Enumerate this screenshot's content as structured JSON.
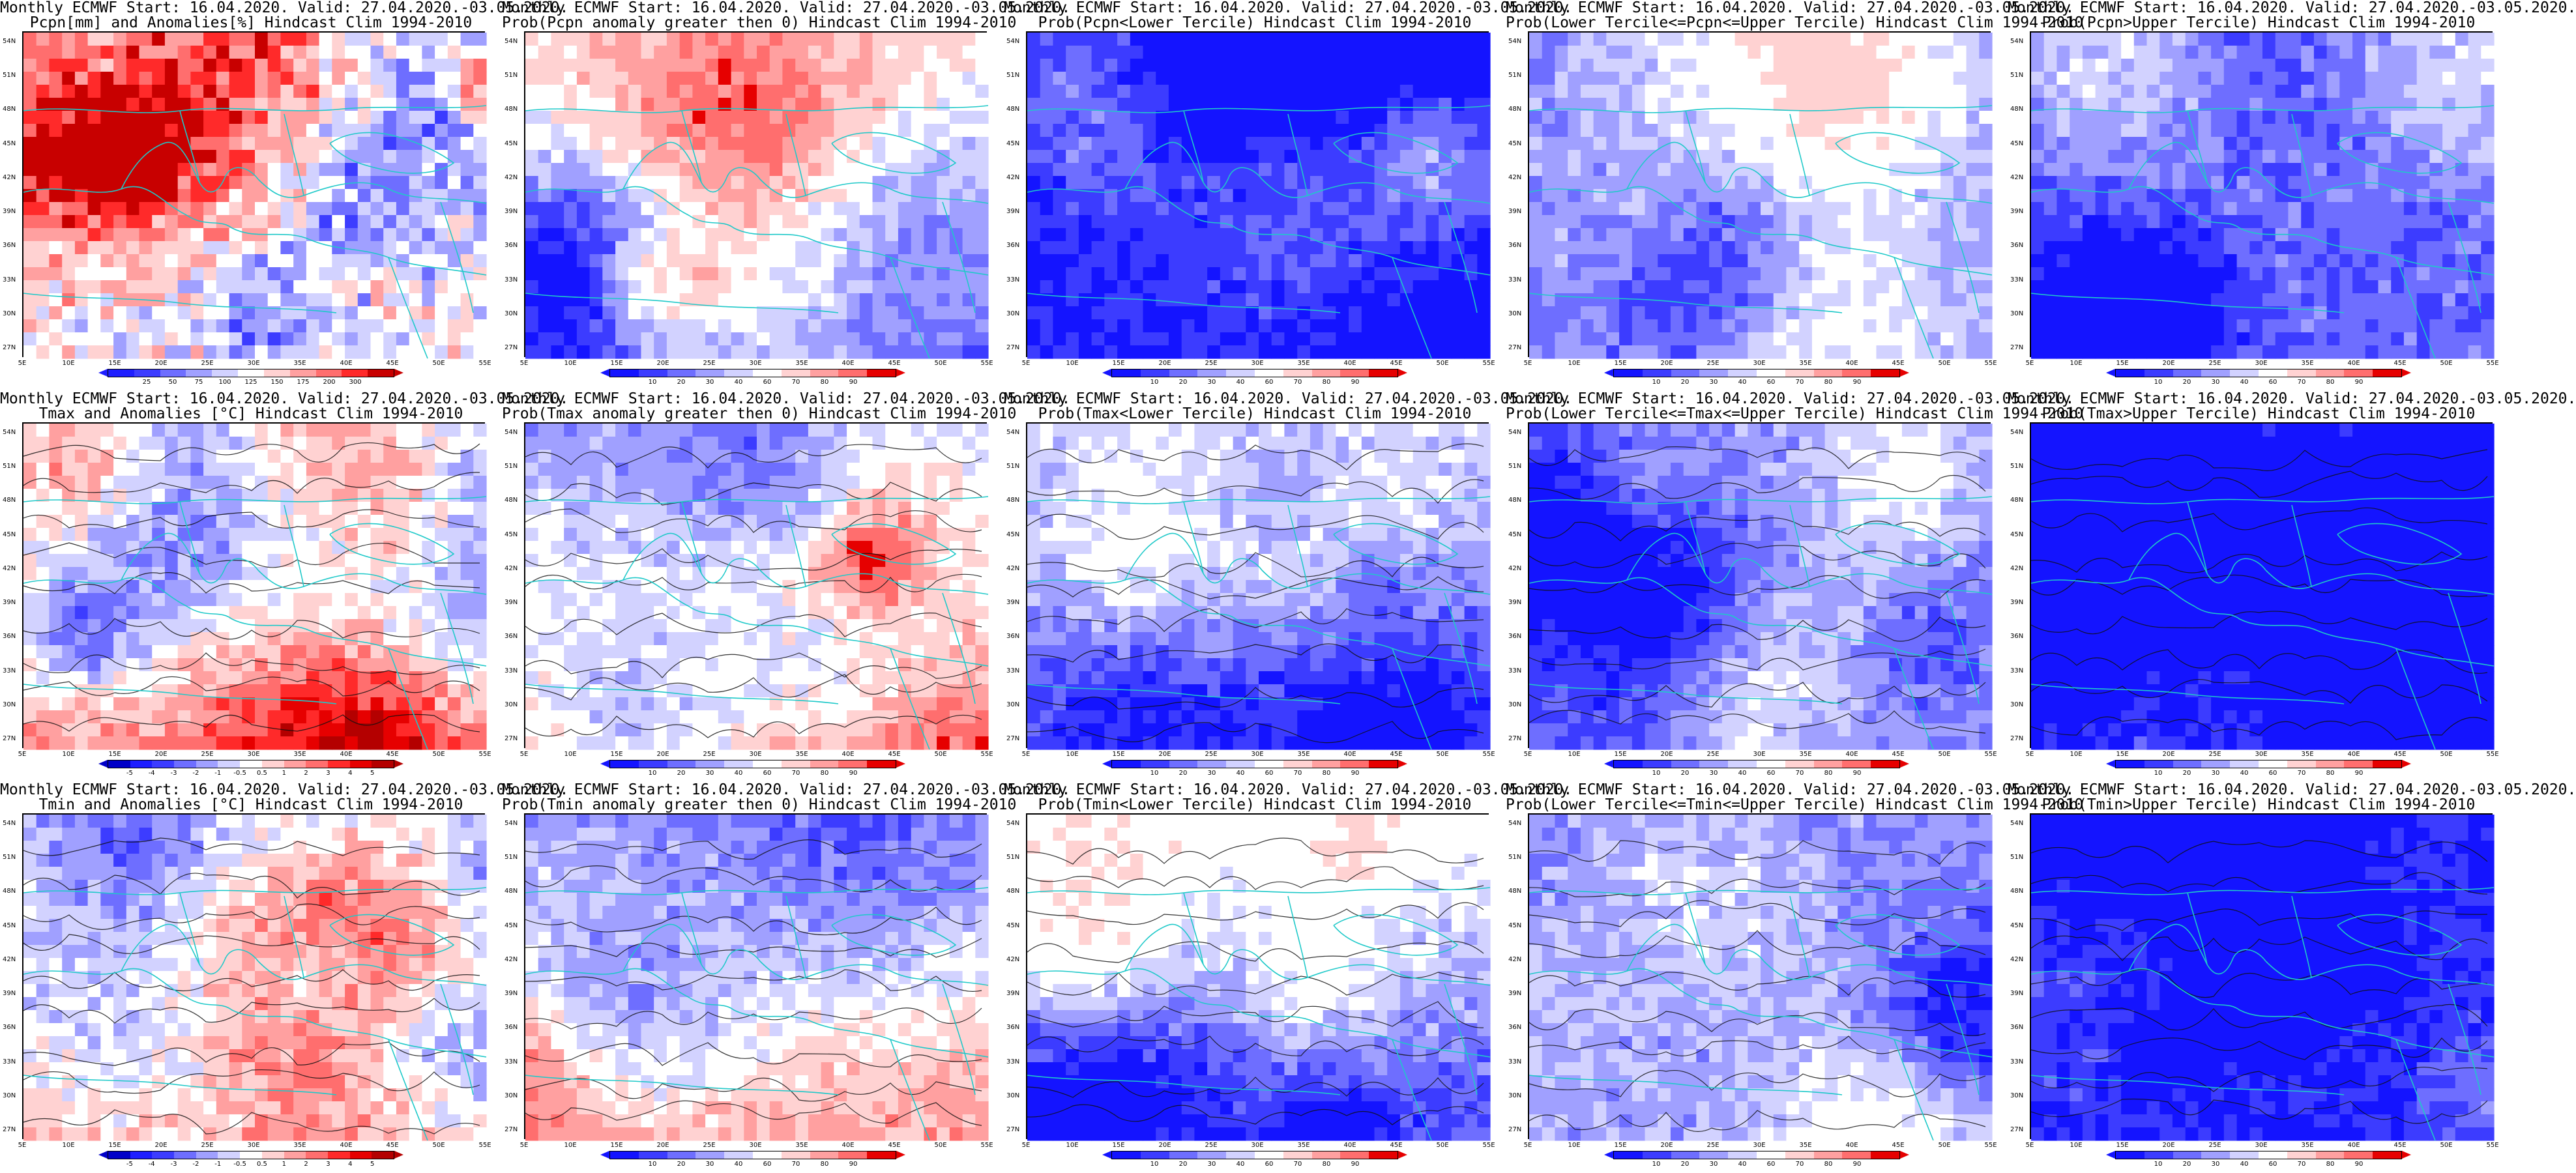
{
  "panels": [
    {
      "title1": "Monthly ECMWF Start: 16.04.2020. Valid: 27.04.2020.-03.05.2020.",
      "title2": "Pcpn[mm] and Anomalies[%] Hindcast Clim 1994-2010",
      "map": "precipitation-anomaly-map",
      "scale": "pcpn_anom"
    },
    {
      "title1": "Monthly ECMWF Start: 16.04.2020. Valid: 27.04.2020.-03.05.2020.",
      "title2": "Prob(Pcpn anomaly greater then 0) Hindcast Clim 1994-2010",
      "map": "precipitation-positive-anomaly-probability-map",
      "scale": "prob"
    },
    {
      "title1": "Monthly ECMWF Start: 16.04.2020. Valid: 27.04.2020.-03.05.2020.",
      "title2": "Prob(Pcpn<Lower Tercile) Hindcast Clim 1994-2010",
      "map": "precipitation-lower-tercile-probability-map",
      "scale": "prob"
    },
    {
      "title1": "Monthly ECMWF Start: 16.04.2020. Valid: 27.04.2020.-03.05.2020.",
      "title2": "Prob(Lower Tercile<=Pcpn<=Upper Tercile) Hindcast Clim 1994-2010",
      "map": "precipitation-middle-tercile-probability-map",
      "scale": "prob"
    },
    {
      "title1": "Monthly ECMWF Start: 16.04.2020. Valid: 27.04.2020.-03.05.2020.",
      "title2": "Prob(Pcpn>Upper Tercile) Hindcast Clim 1994-2010",
      "map": "precipitation-upper-tercile-probability-map",
      "scale": "prob"
    },
    {
      "title1": "Monthly ECMWF Start: 16.04.2020. Valid: 27.04.2020.-03.05.2020.",
      "title2": "Tmax and Anomalies [°C] Hindcast Clim 1994-2010",
      "map": "tmax-anomaly-map",
      "scale": "temp_anom"
    },
    {
      "title1": "Monthly ECMWF Start: 16.04.2020. Valid: 27.04.2020.-03.05.2020.",
      "title2": "Prob(Tmax anomaly greater then 0) Hindcast Clim 1994-2010",
      "map": "tmax-positive-anomaly-probability-map",
      "scale": "prob"
    },
    {
      "title1": "Monthly ECMWF Start: 16.04.2020. Valid: 27.04.2020.-03.05.2020.",
      "title2": "Prob(Tmax<Lower Tercile) Hindcast Clim 1994-2010",
      "map": "tmax-lower-tercile-probability-map",
      "scale": "prob"
    },
    {
      "title1": "Monthly ECMWF Start: 16.04.2020. Valid: 27.04.2020.-03.05.2020.",
      "title2": "Prob(Lower Tercile<=Tmax<=Upper Tercile) Hindcast Clim 1994-2010",
      "map": "tmax-middle-tercile-probability-map",
      "scale": "prob"
    },
    {
      "title1": "Monthly ECMWF Start: 16.04.2020. Valid: 27.04.2020.-03.05.2020.",
      "title2": "Prob(Tmax>Upper Tercile) Hindcast Clim 1994-2010",
      "map": "tmax-upper-tercile-probability-map",
      "scale": "prob"
    },
    {
      "title1": "Monthly ECMWF Start: 16.04.2020. Valid: 27.04.2020.-03.05.2020.",
      "title2": "Tmin and Anomalies [°C] Hindcast Clim 1994-2010",
      "map": "tmin-anomaly-map",
      "scale": "temp_anom"
    },
    {
      "title1": "Monthly ECMWF Start: 16.04.2020. Valid: 27.04.2020.-03.05.2020.",
      "title2": "Prob(Tmin anomaly greater then 0) Hindcast Clim 1994-2010",
      "map": "tmin-positive-anomaly-probability-map",
      "scale": "prob"
    },
    {
      "title1": "Monthly ECMWF Start: 16.04.2020. Valid: 27.04.2020.-03.05.2020.",
      "title2": "Prob(Tmin<Lower Tercile) Hindcast Clim 1994-2010",
      "map": "tmin-lower-tercile-probability-map",
      "scale": "prob"
    },
    {
      "title1": "Monthly ECMWF Start: 16.04.2020. Valid: 27.04.2020.-03.05.2020.",
      "title2": "Prob(Lower Tercile<=Tmin<=Upper Tercile) Hindcast Clim 1994-2010",
      "map": "tmin-middle-tercile-probability-map",
      "scale": "prob"
    },
    {
      "title1": "Monthly ECMWF Start: 16.04.2020. Valid: 27.04.2020.-03.05.2020.",
      "title2": "Prob(Tmin>Upper Tercile) Hindcast Clim 1994-2010",
      "map": "tmin-upper-tercile-probability-map",
      "scale": "prob"
    }
  ],
  "lat_labels": [
    "54N",
    "51N",
    "48N",
    "45N",
    "42N",
    "39N",
    "36N",
    "33N",
    "30N",
    "27N"
  ],
  "lon_labels": [
    "5E",
    "10E",
    "15E",
    "20E",
    "25E",
    "30E",
    "35E",
    "40E",
    "45E",
    "50E",
    "55E"
  ],
  "scales": {
    "pcpn_anom": {
      "ticks": [
        "25",
        "50",
        "75",
        "100",
        "125",
        "150",
        "175",
        "200",
        "300"
      ],
      "colors": [
        "#1e1eff",
        "#3c3cff",
        "#6e6eff",
        "#a0a0ff",
        "#d2d2ff",
        "#ffffff",
        "#ffd2d2",
        "#ffa0a0",
        "#ff6e6e",
        "#ff2a2a",
        "#c80000"
      ]
    },
    "prob": {
      "ticks": [
        "10",
        "20",
        "30",
        "40",
        "60",
        "70",
        "80",
        "90"
      ],
      "colors": [
        "#1414ff",
        "#3c3cff",
        "#6e6eff",
        "#a0a0ff",
        "#d2d2ff",
        "#ffffff",
        "#ffd2d2",
        "#ffa0a0",
        "#ff6e6e",
        "#e60000"
      ]
    },
    "temp_anom": {
      "ticks": [
        "-5",
        "-4",
        "-3",
        "-2",
        "-1",
        "-0.5",
        "0.5",
        "1",
        "2",
        "3",
        "4",
        "5"
      ],
      "colors": [
        "#0000c8",
        "#1e1eff",
        "#3c3cff",
        "#6e6eff",
        "#a0a0ff",
        "#d2d2ff",
        "#ffffff",
        "#ffd2d2",
        "#ffa0a0",
        "#ff6e6e",
        "#ff2a2a",
        "#e60000",
        "#b40000"
      ]
    }
  }
}
